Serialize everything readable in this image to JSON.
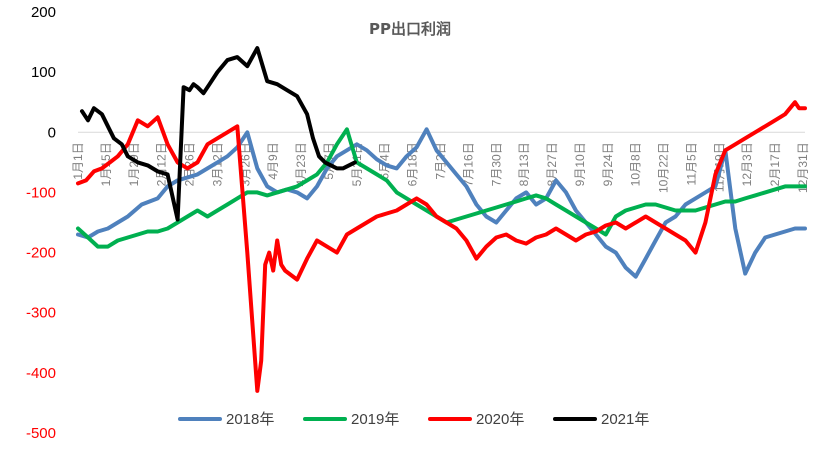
{
  "chart_data": {
    "type": "line",
    "title": "PP出口利润",
    "xlabel": "",
    "ylabel": "",
    "ylim": [
      -500,
      200
    ],
    "yticks": [
      200,
      100,
      0,
      -100,
      -200,
      -300,
      -400,
      -500
    ],
    "ytick_colors": {
      "positive": "#000000",
      "negative": "#ff0000"
    },
    "grid": false,
    "legend_position": "bottom",
    "x_tick_labels": [
      "1月1日",
      "1月15日",
      "1月29日",
      "2月12日",
      "2月26日",
      "3月12日",
      "3月26日",
      "4月9日",
      "4月23日",
      "5月7日",
      "5月21日",
      "6月4日",
      "6月18日",
      "7月2日",
      "7月16日",
      "7月30日",
      "8月13日",
      "8月27日",
      "9月10日",
      "9月24日",
      "10月8日",
      "10月22日",
      "11月5日",
      "11月19日",
      "12月3日",
      "12月17日",
      "12月31日"
    ],
    "series": [
      {
        "name": "2018年",
        "color": "#4f81bd",
        "x": [
          0,
          5,
          10,
          15,
          20,
          25,
          32,
          40,
          45,
          50,
          55,
          60,
          65,
          70,
          75,
          80,
          85,
          90,
          95,
          100,
          105,
          110,
          115,
          120,
          125,
          130,
          135,
          140,
          145,
          150,
          155,
          160,
          165,
          170,
          175,
          180,
          185,
          190,
          195,
          200,
          205,
          210,
          215,
          220,
          225,
          230,
          235,
          240,
          245,
          250,
          255,
          260,
          265,
          270,
          275,
          280,
          285,
          290,
          295,
          300,
          305,
          310,
          315,
          320,
          325,
          330,
          335,
          340,
          345,
          350,
          355,
          360,
          365
        ],
        "y": [
          -170,
          -175,
          -165,
          -160,
          -150,
          -140,
          -120,
          -110,
          -90,
          -80,
          -75,
          -70,
          -60,
          -50,
          -40,
          -25,
          0,
          -60,
          -90,
          -100,
          -95,
          -100,
          -110,
          -90,
          -60,
          -40,
          -30,
          -20,
          -30,
          -45,
          -55,
          -60,
          -40,
          -25,
          5,
          -30,
          -50,
          -70,
          -90,
          -120,
          -140,
          -150,
          -130,
          -110,
          -100,
          -120,
          -110,
          -80,
          -100,
          -130,
          -150,
          -170,
          -190,
          -200,
          -225,
          -240,
          -210,
          -180,
          -150,
          -140,
          -120,
          -110,
          -100,
          -90,
          -30,
          -160,
          -235,
          -200,
          -175,
          -170,
          -165,
          -160,
          -160
        ]
      },
      {
        "name": "2019年",
        "color": "#00b050",
        "x": [
          0,
          5,
          10,
          15,
          20,
          25,
          30,
          35,
          40,
          45,
          50,
          55,
          60,
          65,
          70,
          75,
          80,
          85,
          90,
          95,
          100,
          105,
          110,
          115,
          120,
          125,
          130,
          135,
          140,
          145,
          150,
          155,
          160,
          165,
          170,
          175,
          180,
          185,
          190,
          195,
          200,
          205,
          210,
          215,
          220,
          225,
          230,
          235,
          240,
          245,
          250,
          255,
          260,
          265,
          270,
          275,
          280,
          285,
          290,
          295,
          300,
          305,
          310,
          315,
          320,
          325,
          330,
          335,
          340,
          345,
          350,
          355,
          360,
          365
        ],
        "y": [
          -160,
          -175,
          -190,
          -190,
          -180,
          -175,
          -170,
          -165,
          -165,
          -160,
          -150,
          -140,
          -130,
          -140,
          -130,
          -120,
          -110,
          -100,
          -100,
          -105,
          -100,
          -95,
          -90,
          -80,
          -70,
          -50,
          -20,
          5,
          -50,
          -60,
          -70,
          -80,
          -100,
          -110,
          -120,
          -130,
          -140,
          -150,
          -145,
          -140,
          -135,
          -130,
          -125,
          -120,
          -115,
          -110,
          -105,
          -110,
          -120,
          -130,
          -140,
          -150,
          -160,
          -170,
          -140,
          -130,
          -125,
          -120,
          -120,
          -125,
          -130,
          -130,
          -130,
          -125,
          -120,
          -115,
          -115,
          -110,
          -105,
          -100,
          -95,
          -90,
          -90,
          -90
        ]
      },
      {
        "name": "2020年",
        "color": "#ff0000",
        "x": [
          0,
          4,
          8,
          12,
          16,
          20,
          25,
          30,
          35,
          40,
          45,
          50,
          55,
          60,
          65,
          70,
          75,
          80,
          85,
          90,
          92,
          94,
          96,
          98,
          100,
          102,
          104,
          106,
          108,
          110,
          115,
          120,
          125,
          130,
          135,
          140,
          145,
          150,
          155,
          160,
          165,
          170,
          175,
          180,
          185,
          190,
          195,
          200,
          205,
          210,
          215,
          220,
          225,
          230,
          235,
          240,
          245,
          250,
          255,
          260,
          265,
          270,
          275,
          280,
          285,
          290,
          295,
          300,
          305,
          310,
          315,
          320,
          325,
          330,
          335,
          340,
          345,
          350,
          355,
          360,
          362,
          365
        ],
        "y": [
          -85,
          -80,
          -65,
          -60,
          -50,
          -40,
          -20,
          20,
          10,
          25,
          -20,
          -50,
          -60,
          -50,
          -20,
          -10,
          0,
          10,
          -200,
          -430,
          -380,
          -220,
          -200,
          -230,
          -180,
          -220,
          -230,
          -235,
          -240,
          -245,
          -210,
          -180,
          -190,
          -200,
          -170,
          -160,
          -150,
          -140,
          -135,
          -130,
          -120,
          -110,
          -120,
          -140,
          -150,
          -160,
          -180,
          -210,
          -190,
          -175,
          -170,
          -180,
          -185,
          -175,
          -170,
          -160,
          -170,
          -180,
          -170,
          -165,
          -155,
          -150,
          -160,
          -150,
          -140,
          -150,
          -160,
          -170,
          -180,
          -200,
          -150,
          -70,
          -30,
          -20,
          -10,
          0,
          10,
          20,
          30,
          50,
          40,
          40
        ]
      },
      {
        "name": "2021年",
        "color": "#000000",
        "x": [
          2,
          5,
          8,
          12,
          15,
          18,
          22,
          25,
          30,
          35,
          40,
          45,
          50,
          53,
          56,
          58,
          60,
          63,
          66,
          70,
          75,
          80,
          85,
          90,
          95,
          100,
          105,
          110,
          115,
          118,
          121,
          124,
          127,
          130,
          133,
          136,
          139
        ],
        "y": [
          35,
          20,
          40,
          30,
          10,
          -10,
          -20,
          -40,
          -50,
          -55,
          -65,
          -70,
          -145,
          75,
          70,
          80,
          75,
          65,
          80,
          100,
          120,
          125,
          110,
          140,
          85,
          80,
          70,
          60,
          30,
          -10,
          -40,
          -50,
          -55,
          -60,
          -60,
          -55,
          -50
        ]
      }
    ]
  }
}
